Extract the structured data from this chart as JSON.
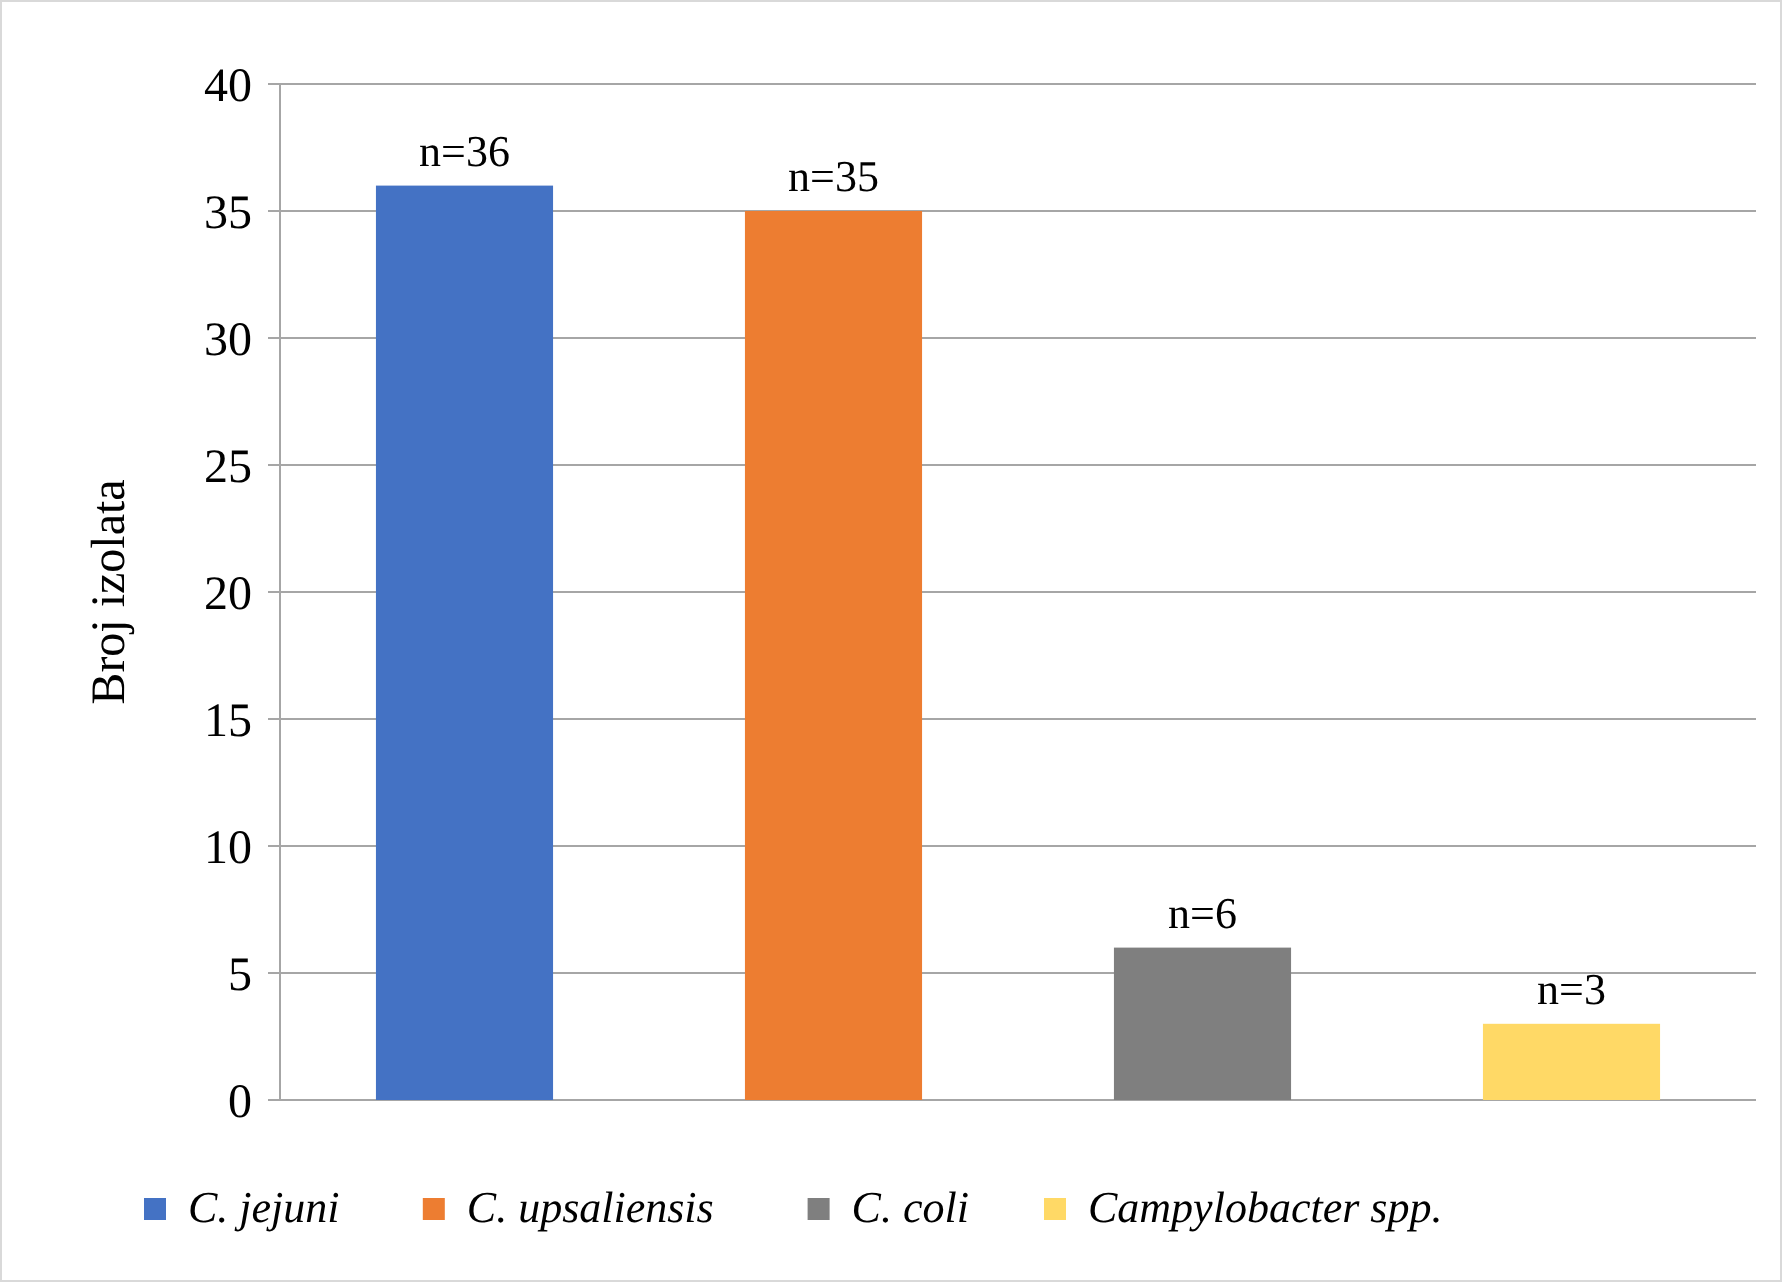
{
  "chart_data": {
    "type": "bar",
    "ylabel": "Broj izolata",
    "categories": [
      null,
      null,
      null,
      null
    ],
    "series": [
      {
        "name": "C. jejuni",
        "color": "#4472c4",
        "values": [
          36,
          null,
          null,
          null
        ],
        "value_labels": [
          "n=36",
          null,
          null,
          null
        ]
      },
      {
        "name": "C. upsaliensis",
        "color": "#ed7d31",
        "values": [
          null,
          35,
          null,
          null
        ],
        "value_labels": [
          null,
          "n=35",
          null,
          null
        ]
      },
      {
        "name": "C. coli",
        "color": "#7f7f7f",
        "values": [
          null,
          null,
          6,
          null
        ],
        "value_labels": [
          null,
          null,
          "n=6",
          null
        ]
      },
      {
        "name": "Campylobacter spp.",
        "color": "#ffd966",
        "values": [
          null,
          null,
          null,
          3
        ],
        "value_labels": [
          null,
          null,
          null,
          "n=3"
        ]
      }
    ],
    "ylim": [
      0,
      40
    ],
    "yticks": [
      0,
      5,
      10,
      15,
      20,
      25,
      30,
      35,
      40
    ],
    "grid": "y",
    "legend": "bottom"
  }
}
